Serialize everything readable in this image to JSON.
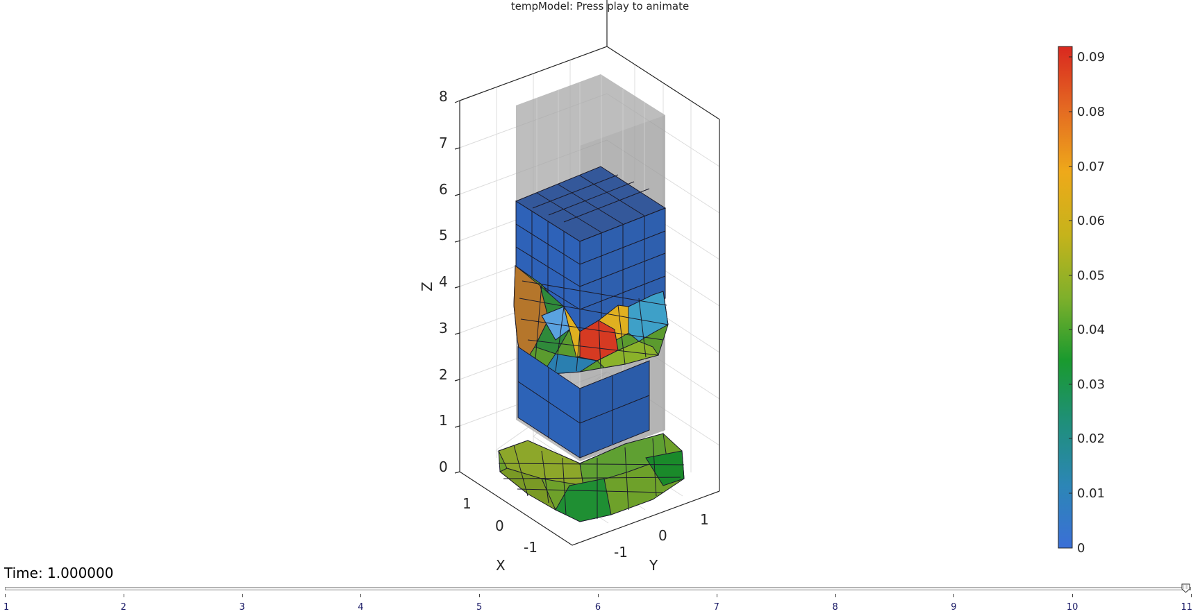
{
  "window": {
    "title": "tempModel: Press play to animate"
  },
  "axes": {
    "zlabel": "Z",
    "xlabel": "X",
    "ylabel": "Y",
    "z_ticks": [
      "0",
      "1",
      "2",
      "3",
      "4",
      "5",
      "6",
      "7",
      "8"
    ],
    "x_ticks": [
      "1",
      "0",
      "-1"
    ],
    "y_ticks": [
      "-1",
      "0",
      "1"
    ]
  },
  "colorbar": {
    "ticks": [
      "0",
      "0.01",
      "0.02",
      "0.03",
      "0.04",
      "0.05",
      "0.06",
      "0.07",
      "0.08",
      "0.09"
    ],
    "range": [
      0,
      0.092
    ],
    "colormap": [
      "#3b6fd6",
      "#2c86b6",
      "#1f8f7a",
      "#1a9a2e",
      "#7fb02b",
      "#c6b31b",
      "#eea91a",
      "#e46a22",
      "#d9281f"
    ]
  },
  "animation": {
    "time_label": "Time: 1.000000",
    "slider_value": 11,
    "slider_min": 1,
    "slider_max": 11,
    "slider_ticks": [
      "1",
      "2",
      "3",
      "4",
      "5",
      "6",
      "7",
      "8",
      "9",
      "10",
      "11"
    ]
  },
  "colors": {
    "undeformed": "#9a9a9a",
    "block_blue": "#2f5fb0",
    "grid": "#d0d0d0"
  }
}
